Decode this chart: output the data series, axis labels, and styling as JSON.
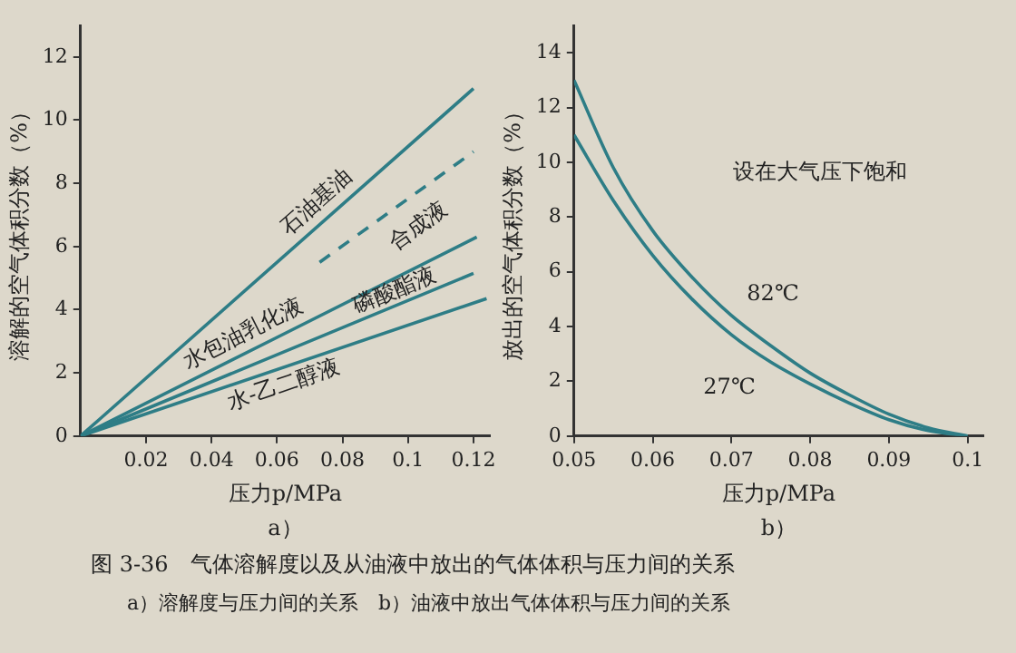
{
  "chart_data": [
    {
      "type": "line",
      "xlabel": "压力p/MPa",
      "ylabel": "溶解的空气体积分数（%）",
      "xlim": [
        0,
        0.125
      ],
      "xticks": [
        0.02,
        0.04,
        0.06,
        0.08,
        0.1,
        0.12
      ],
      "ylim": [
        0,
        13
      ],
      "yticks": [
        0,
        2,
        4,
        6,
        8,
        10,
        12
      ],
      "grid": false,
      "legend": false,
      "marker": "none",
      "annotations": [
        "a）"
      ],
      "series": [
        {
          "name": "石油基油",
          "color": "#2e7d86",
          "x": [
            0,
            0.12
          ],
          "values": [
            0,
            11.0
          ]
        },
        {
          "name": "合成液",
          "color": "#2e7d86",
          "x": [
            0.073,
            0.12
          ],
          "values": [
            5.5,
            9.0
          ],
          "line_style": "dashed"
        },
        {
          "name": "水包油乳化液",
          "color": "#2e7d86",
          "x": [
            0,
            0.121
          ],
          "values": [
            0,
            6.3
          ]
        },
        {
          "name": "磷酸酯液",
          "color": "#2e7d86",
          "x": [
            0,
            0.12
          ],
          "values": [
            0,
            5.15
          ]
        },
        {
          "name": "水-乙二醇液",
          "color": "#2e7d86",
          "x": [
            0,
            0.124
          ],
          "values": [
            0,
            4.35
          ]
        }
      ]
    },
    {
      "type": "line",
      "xlabel": "压力p/MPa",
      "ylabel": "放出的空气体积分数（%）",
      "xlim": [
        0.05,
        0.102
      ],
      "xticks": [
        0.05,
        0.06,
        0.07,
        0.08,
        0.09,
        0.1
      ],
      "ylim": [
        0,
        15
      ],
      "yticks": [
        0,
        2,
        4,
        6,
        8,
        10,
        12,
        14
      ],
      "grid": false,
      "legend": false,
      "marker": "none",
      "annotations": [
        "设在大气压下饱和",
        "b）"
      ],
      "x": [
        0.05,
        0.055,
        0.06,
        0.065,
        0.07,
        0.075,
        0.08,
        0.085,
        0.09,
        0.095,
        0.1
      ],
      "series": [
        {
          "name": "82℃",
          "color": "#2e7d86",
          "values": [
            13,
            9.8,
            7.5,
            5.8,
            4.4,
            3.3,
            2.3,
            1.5,
            0.8,
            0.3,
            0
          ]
        },
        {
          "name": "27℃",
          "color": "#2e7d86",
          "values": [
            11,
            8.6,
            6.6,
            5.0,
            3.7,
            2.7,
            1.9,
            1.2,
            0.6,
            0.2,
            0
          ]
        }
      ]
    },
    {
      "type": "other",
      "annotations": [
        "图 3-36　气体溶解度以及从油液中放出的气体体积与压力间的关系",
        "a）溶解度与压力间的关系　b）油液中放出气体体积与压力间的关系"
      ]
    }
  ]
}
